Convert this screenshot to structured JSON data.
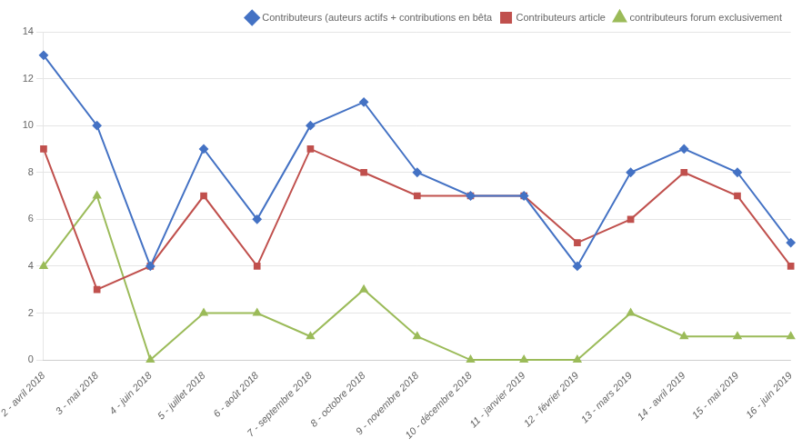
{
  "chart_data": {
    "type": "line",
    "categories": [
      "2 - avril 2018",
      "3 - mai 2018",
      "4 - juin 2018",
      "5 - juillet 2018",
      "6 - août 2018",
      "7 - septembre 2018",
      "8 - octobre 2018",
      "9 - novembre 2018",
      "10 - décembre 2018",
      "11 - janvier 2019",
      "12 - février 2019",
      "13 - mars 2019",
      "14 - avril 2019",
      "15 - mai 2019",
      "16 - juin 2019"
    ],
    "series": [
      {
        "name": "Contributeurs (auteurs actifs + contributions en\nbêta",
        "color": "#4472C4",
        "marker": "diamond",
        "values": [
          13,
          10,
          4,
          9,
          6,
          10,
          11,
          8,
          7,
          7,
          4,
          8,
          9,
          8,
          5
        ]
      },
      {
        "name": "Contributeurs article",
        "color": "#C0504D",
        "marker": "square",
        "values": [
          9,
          3,
          4,
          7,
          4,
          9,
          8,
          7,
          7,
          7,
          5,
          6,
          8,
          7,
          4
        ]
      },
      {
        "name": "contributeurs forum exclusivement",
        "color": "#9BBB59",
        "marker": "triangle",
        "values": [
          4,
          7,
          0,
          2,
          2,
          1,
          3,
          1,
          0,
          0,
          0,
          2,
          1,
          1,
          1
        ]
      }
    ],
    "ylim": [
      0,
      14
    ],
    "yticks": [
      0,
      2,
      4,
      6,
      8,
      10,
      12,
      14
    ],
    "grid": "y",
    "legend": "upper right"
  }
}
